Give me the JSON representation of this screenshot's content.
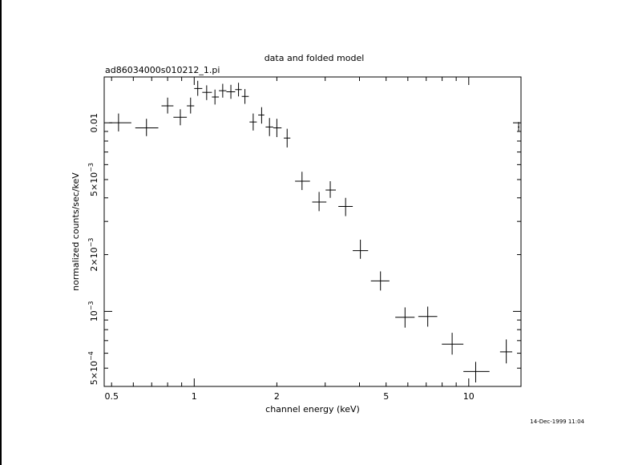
{
  "chart_data": {
    "type": "scatter",
    "title": "data and folded model",
    "subtitle": "ad86034000s010212_1.pi",
    "xlabel": "channel energy (keV)",
    "ylabel": "normalized counts/sec/keV",
    "timestamp": "14-Dec-1999 11:04",
    "xscale": "log",
    "yscale": "log",
    "xlim": [
      0.47,
      15.5
    ],
    "ylim": [
      0.0004,
      0.0175
    ],
    "x_ticks": [
      {
        "value": 0.5,
        "label": "0.5"
      },
      {
        "value": 1,
        "label": "1"
      },
      {
        "value": 2,
        "label": "2"
      },
      {
        "value": 5,
        "label": "5"
      },
      {
        "value": 10,
        "label": "10"
      }
    ],
    "y_ticks": [
      {
        "value": 0.01,
        "mantissa": "0.01",
        "exp": ""
      },
      {
        "value": 0.005,
        "mantissa": "5×10",
        "exp": "−3"
      },
      {
        "value": 0.002,
        "mantissa": "2×10",
        "exp": "−3"
      },
      {
        "value": 0.001,
        "mantissa": "10",
        "exp": "−3"
      },
      {
        "value": 0.0005,
        "mantissa": "5×10",
        "exp": "−4"
      }
    ],
    "series": [
      {
        "points": [
          {
            "x": 0.53,
            "xerr": [
              0.49,
              0.59
            ],
            "y": 0.01,
            "yerr": [
              0.009,
              0.0112
            ]
          },
          {
            "x": 0.67,
            "xerr": [
              0.61,
              0.74
            ],
            "y": 0.0094,
            "yerr": [
              0.0085,
              0.0105
            ]
          },
          {
            "x": 0.8,
            "xerr": [
              0.76,
              0.84
            ],
            "y": 0.0123,
            "yerr": [
              0.0112,
              0.0136
            ]
          },
          {
            "x": 0.89,
            "xerr": [
              0.84,
              0.94
            ],
            "y": 0.0107,
            "yerr": [
              0.0097,
              0.0118
            ]
          },
          {
            "x": 0.97,
            "xerr": [
              0.94,
              1.0
            ],
            "y": 0.0123,
            "yerr": [
              0.0112,
              0.0136
            ]
          },
          {
            "x": 1.03,
            "xerr": [
              1.0,
              1.07
            ],
            "y": 0.0152,
            "yerr": [
              0.0139,
              0.0167
            ]
          },
          {
            "x": 1.11,
            "xerr": [
              1.07,
              1.16
            ],
            "y": 0.0145,
            "yerr": [
              0.0132,
              0.0158
            ]
          },
          {
            "x": 1.19,
            "xerr": [
              1.16,
              1.23
            ],
            "y": 0.0137,
            "yerr": [
              0.0125,
              0.015
            ]
          },
          {
            "x": 1.27,
            "xerr": [
              1.23,
              1.31
            ],
            "y": 0.0148,
            "yerr": [
              0.0136,
              0.0161
            ]
          },
          {
            "x": 1.36,
            "xerr": [
              1.31,
              1.41
            ],
            "y": 0.0146,
            "yerr": [
              0.0134,
              0.0159
            ]
          },
          {
            "x": 1.45,
            "xerr": [
              1.41,
              1.49
            ],
            "y": 0.015,
            "yerr": [
              0.0138,
              0.0163
            ]
          },
          {
            "x": 1.53,
            "xerr": [
              1.49,
              1.58
            ],
            "y": 0.0138,
            "yerr": [
              0.0126,
              0.0151
            ]
          },
          {
            "x": 1.64,
            "xerr": [
              1.59,
              1.69
            ],
            "y": 0.0101,
            "yerr": [
              0.0091,
              0.0112
            ]
          },
          {
            "x": 1.76,
            "xerr": [
              1.71,
              1.8
            ],
            "y": 0.011,
            "yerr": [
              0.0099,
              0.0121
            ]
          },
          {
            "x": 1.88,
            "xerr": [
              1.82,
              1.94
            ],
            "y": 0.0095,
            "yerr": [
              0.0085,
              0.0106
            ]
          },
          {
            "x": 2.0,
            "xerr": [
              1.94,
              2.08
            ],
            "y": 0.0094,
            "yerr": [
              0.0084,
              0.0105
            ]
          },
          {
            "x": 2.18,
            "xerr": [
              2.12,
              2.24
            ],
            "y": 0.0083,
            "yerr": [
              0.0074,
              0.0093
            ]
          },
          {
            "x": 2.47,
            "xerr": [
              2.33,
              2.64
            ],
            "y": 0.0049,
            "yerr": [
              0.0044,
              0.0055
            ]
          },
          {
            "x": 2.85,
            "xerr": [
              2.69,
              3.03
            ],
            "y": 0.0038,
            "yerr": [
              0.0034,
              0.0043
            ]
          },
          {
            "x": 3.13,
            "xerr": [
              3.01,
              3.28
            ],
            "y": 0.0044,
            "yerr": [
              0.004,
              0.0049
            ]
          },
          {
            "x": 3.56,
            "xerr": [
              3.35,
              3.78
            ],
            "y": 0.0036,
            "yerr": [
              0.0032,
              0.004
            ]
          },
          {
            "x": 4.03,
            "xerr": [
              3.78,
              4.3
            ],
            "y": 0.0021,
            "yerr": [
              0.0019,
              0.0024
            ]
          },
          {
            "x": 4.77,
            "xerr": [
              4.4,
              5.14
            ],
            "y": 0.00145,
            "yerr": [
              0.00129,
              0.00163
            ]
          },
          {
            "x": 5.86,
            "xerr": [
              5.4,
              6.35
            ],
            "y": 0.00093,
            "yerr": [
              0.00082,
              0.00105
            ]
          },
          {
            "x": 7.09,
            "xerr": [
              6.55,
              7.68
            ],
            "y": 0.00094,
            "yerr": [
              0.00083,
              0.00106
            ]
          },
          {
            "x": 8.7,
            "xerr": [
              7.98,
              9.56
            ],
            "y": 0.00067,
            "yerr": [
              0.00059,
              0.00077
            ]
          },
          {
            "x": 10.6,
            "xerr": [
              9.56,
              11.9
            ],
            "y": 0.00048,
            "yerr": [
              0.00042,
              0.00054
            ]
          },
          {
            "x": 13.7,
            "xerr": [
              13.0,
              14.4
            ],
            "y": 0.00061,
            "yerr": [
              0.00053,
              0.00071
            ]
          },
          {
            "x": 15.2,
            "xerr": [
              15.1,
              15.3
            ],
            "y": 0.0095,
            "yerr": [
              0.009,
              0.0101
            ]
          }
        ]
      }
    ],
    "grid": false,
    "legend": "none"
  }
}
